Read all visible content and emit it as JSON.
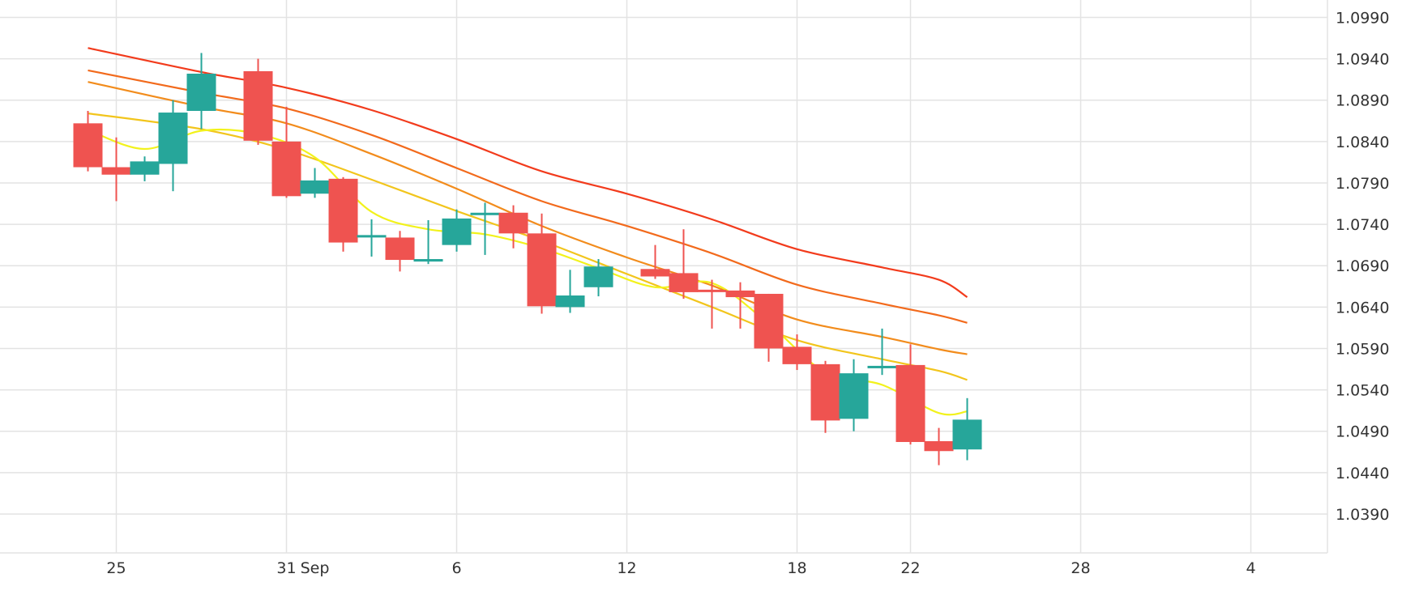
{
  "chart_data": {
    "type": "candlestick",
    "x_tick_labels": [
      {
        "day": 2,
        "label": "25"
      },
      {
        "day": 8,
        "label": "31"
      },
      {
        "day": 9,
        "label": "Sep"
      },
      {
        "day": 14,
        "label": "6"
      },
      {
        "day": 20,
        "label": "12"
      },
      {
        "day": 26,
        "label": "18"
      },
      {
        "day": 30,
        "label": "22"
      },
      {
        "day": 36,
        "label": "28"
      },
      {
        "day": 42,
        "label": "4"
      }
    ],
    "y_tick_labels": [
      "1.0990",
      "1.0940",
      "1.0890",
      "1.0840",
      "1.0790",
      "1.0740",
      "1.0690",
      "1.0640",
      "1.0590",
      "1.0540",
      "1.0490",
      "1.0440",
      "1.0390"
    ],
    "ylim": [
      1.0343,
      1.1011
    ],
    "xlim": [
      -2.1,
      44.7
    ],
    "grid": true,
    "colors": {
      "up": "#26a69a",
      "down": "#ef5350",
      "grid": "#e3e3e3",
      "text": "#333333"
    },
    "candles": [
      {
        "day": 1,
        "open": 1.0862,
        "high": 1.0877,
        "low": 1.0804,
        "close": 1.0809
      },
      {
        "day": 2,
        "open": 1.0809,
        "high": 1.0845,
        "low": 1.0768,
        "close": 1.08
      },
      {
        "day": 3,
        "open": 1.08,
        "high": 1.0822,
        "low": 1.0792,
        "close": 1.0816
      },
      {
        "day": 4,
        "open": 1.0813,
        "high": 1.089,
        "low": 1.078,
        "close": 1.0875
      },
      {
        "day": 5,
        "open": 1.0877,
        "high": 1.0947,
        "low": 1.0855,
        "close": 1.0922
      },
      {
        "day": 7,
        "open": 1.0925,
        "high": 1.094,
        "low": 1.0836,
        "close": 1.0841
      },
      {
        "day": 8,
        "open": 1.084,
        "high": 1.0882,
        "low": 1.0772,
        "close": 1.0774
      },
      {
        "day": 9,
        "open": 1.0777,
        "high": 1.0808,
        "low": 1.0772,
        "close": 1.0793
      },
      {
        "day": 10,
        "open": 1.0795,
        "high": 1.0797,
        "low": 1.0707,
        "close": 1.0718
      },
      {
        "day": 11,
        "open": 1.0726,
        "high": 1.0746,
        "low": 1.0701,
        "close": 1.0727
      },
      {
        "day": 12,
        "open": 1.0724,
        "high": 1.0732,
        "low": 1.0683,
        "close": 1.0697
      },
      {
        "day": 13,
        "open": 1.0695,
        "high": 1.0745,
        "low": 1.0692,
        "close": 1.0698
      },
      {
        "day": 14,
        "open": 1.0715,
        "high": 1.0758,
        "low": 1.0707,
        "close": 1.0747
      },
      {
        "day": 15,
        "open": 1.0753,
        "high": 1.0766,
        "low": 1.0703,
        "close": 1.0754
      },
      {
        "day": 16,
        "open": 1.0754,
        "high": 1.0763,
        "low": 1.0711,
        "close": 1.0729
      },
      {
        "day": 17,
        "open": 1.0729,
        "high": 1.0753,
        "low": 1.0632,
        "close": 1.0641
      },
      {
        "day": 18,
        "open": 1.064,
        "high": 1.0685,
        "low": 1.0633,
        "close": 1.0654
      },
      {
        "day": 19,
        "open": 1.0664,
        "high": 1.0698,
        "low": 1.0653,
        "close": 1.0689
      },
      {
        "day": 21,
        "open": 1.0686,
        "high": 1.0715,
        "low": 1.0674,
        "close": 1.0677
      },
      {
        "day": 22,
        "open": 1.0681,
        "high": 1.0734,
        "low": 1.065,
        "close": 1.0658
      },
      {
        "day": 23,
        "open": 1.0661,
        "high": 1.0673,
        "low": 1.0614,
        "close": 1.0659
      },
      {
        "day": 24,
        "open": 1.066,
        "high": 1.067,
        "low": 1.0614,
        "close": 1.0652
      },
      {
        "day": 25,
        "open": 1.0656,
        "high": 1.0656,
        "low": 1.0574,
        "close": 1.059
      },
      {
        "day": 26,
        "open": 1.0592,
        "high": 1.0607,
        "low": 1.0564,
        "close": 1.0571
      },
      {
        "day": 27,
        "open": 1.0571,
        "high": 1.0575,
        "low": 1.0488,
        "close": 1.0503
      },
      {
        "day": 28,
        "open": 1.0505,
        "high": 1.0577,
        "low": 1.049,
        "close": 1.056
      },
      {
        "day": 29,
        "open": 1.0567,
        "high": 1.0614,
        "low": 1.0558,
        "close": 1.0569
      },
      {
        "day": 30,
        "open": 1.057,
        "high": 1.0595,
        "low": 1.0474,
        "close": 1.0477
      },
      {
        "day": 31,
        "open": 1.0478,
        "high": 1.0494,
        "low": 1.0449,
        "close": 1.0466
      },
      {
        "day": 32,
        "open": 1.0468,
        "high": 1.053,
        "low": 1.0455,
        "close": 1.0504
      }
    ],
    "series": [
      {
        "color": "#f23b1c",
        "x": [
          1,
          5,
          8,
          11,
          14,
          17,
          20,
          23,
          26,
          29,
          31,
          32
        ],
        "values": [
          1.0953,
          1.0924,
          1.0905,
          1.0878,
          1.0843,
          1.0804,
          1.0777,
          1.0746,
          1.071,
          1.0688,
          1.0673,
          1.0652
        ]
      },
      {
        "color": "#f26a1c",
        "x": [
          1,
          5,
          8,
          11,
          14,
          17,
          20,
          23,
          26,
          29,
          31,
          32
        ],
        "values": [
          1.0926,
          1.0899,
          1.088,
          1.0848,
          1.0808,
          1.0768,
          1.0738,
          1.0705,
          1.0667,
          1.0644,
          1.063,
          1.0621
        ]
      },
      {
        "color": "#f28c1c",
        "x": [
          1,
          5,
          8,
          11,
          14,
          17,
          20,
          23,
          26,
          29,
          31,
          32
        ],
        "values": [
          1.0912,
          1.0882,
          1.0862,
          1.0825,
          1.0783,
          1.0738,
          1.07,
          1.0666,
          1.0625,
          1.0604,
          1.0589,
          1.0583
        ]
      },
      {
        "color": "#f2c51c",
        "x": [
          1,
          5,
          8,
          11,
          14,
          17,
          20,
          23,
          26,
          29,
          31,
          32
        ],
        "values": [
          1.0874,
          1.0855,
          1.083,
          1.0794,
          1.0756,
          1.072,
          1.068,
          1.064,
          1.06,
          1.0577,
          1.0563,
          1.0552
        ]
      },
      {
        "color": "#f2f21c",
        "x": [
          1,
          3,
          5,
          7,
          9,
          11,
          13,
          15,
          17,
          19,
          21,
          23,
          25,
          27,
          29,
          31,
          32
        ],
        "values": [
          1.0854,
          1.0831,
          1.0853,
          1.0849,
          1.0821,
          1.0755,
          1.0734,
          1.0728,
          1.0711,
          1.0687,
          1.0664,
          1.0669,
          1.062,
          1.0561,
          1.0546,
          1.0512,
          1.0514
        ]
      }
    ]
  }
}
